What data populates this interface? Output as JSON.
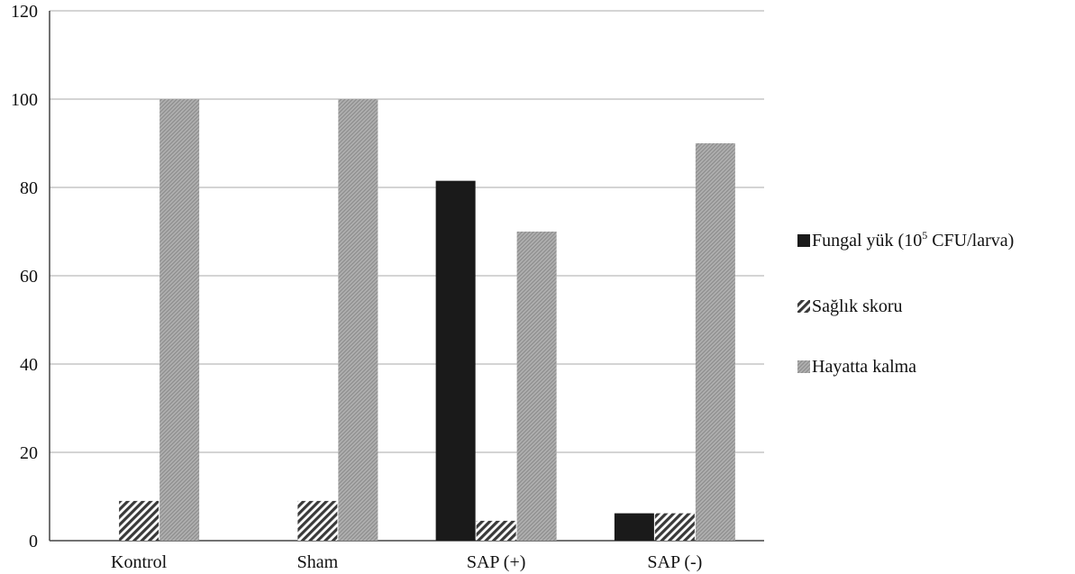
{
  "chart_data": {
    "type": "bar",
    "categories": [
      "Kontrol",
      "Sham",
      "SAP (+)",
      "SAP (-)"
    ],
    "series": [
      {
        "name": "Fungal yük (10⁵ CFU/larva)",
        "values": [
          0,
          0,
          81.5,
          6.2
        ],
        "color": "#1a1a1a",
        "pattern": "solid"
      },
      {
        "name": "Sağlık skoru",
        "values": [
          9,
          9,
          4.5,
          6.2
        ],
        "color": "#555555",
        "pattern": "diagonal-hatch"
      },
      {
        "name": "Hayatta kalma",
        "values": [
          100,
          100,
          70,
          90
        ],
        "color": "#9a9a9a",
        "pattern": "fine-gray"
      }
    ],
    "ylim": [
      0,
      120
    ],
    "yticks": [
      0,
      20,
      40,
      60,
      80,
      100,
      120
    ],
    "grid": true,
    "legend_position": "right",
    "title": "",
    "xlabel": "",
    "ylabel": ""
  },
  "legend": {
    "fungal_prefix": "Fungal yük (10",
    "fungal_exponent": "5",
    "fungal_suffix": " CFU/larva)"
  }
}
